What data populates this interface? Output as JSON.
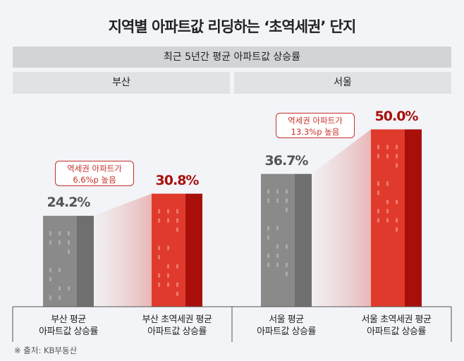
{
  "title": "지역별 아파트값 리딩하는 ‘초역세권’ 단지",
  "chart_data": {
    "type": "bar",
    "title": "지역별 아파트값 리딩하는 ‘초역세권’ 단지",
    "subtitle": "최근 5년간 평균 아파트값 상승률",
    "groups": [
      "부산",
      "서울"
    ],
    "categories": [
      "부산 평균 아파트값 상승률",
      "부산 초역세권 평균 아파트값 상승률",
      "서울 평균 아파트값 상승률",
      "서울 초역세권 평균 아파트값 상승률"
    ],
    "category_lines": [
      [
        "부산 평균",
        "아파트값 상승률"
      ],
      [
        "부산 초역세권 평균",
        "아파트값 상승률"
      ],
      [
        "서울 평균",
        "아파트값 상승률"
      ],
      [
        "서울 초역세권 평균",
        "아파트값 상승률"
      ]
    ],
    "values": [
      24.2,
      30.8,
      36.7,
      50.0
    ],
    "value_labels": [
      "24.2%",
      "30.8%",
      "36.7%",
      "50.0%"
    ],
    "annotations": [
      {
        "group": "부산",
        "lines": [
          "역세권 아파트가",
          "6.6%p 높음"
        ]
      },
      {
        "group": "서울",
        "lines": [
          "역세권 아파트가",
          "13.3%p 높음"
        ]
      }
    ],
    "colors": {
      "average": "#8a8a8a",
      "average_side": "#6f6f6f",
      "station": "#e03a2c",
      "station_side": "#a80f0b",
      "label_avg": "#555555",
      "label_station": "#a80f0b"
    },
    "grid": false
  },
  "source": "※ 출처: KB부동산"
}
